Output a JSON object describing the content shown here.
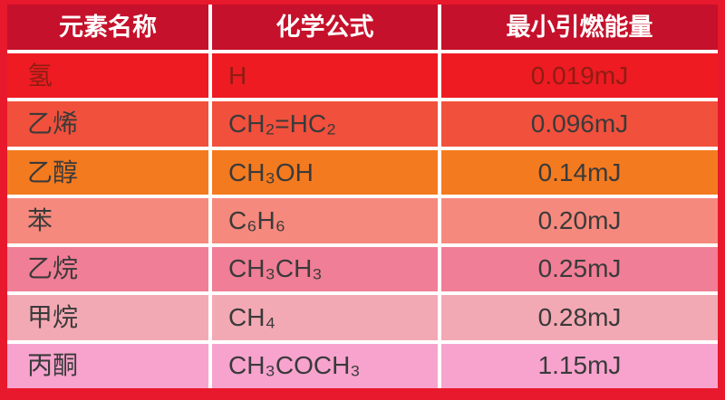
{
  "chart_data": {
    "type": "table",
    "title": "",
    "columns": [
      "元素名称",
      "化学公式",
      "最小引燃能量"
    ],
    "rows": [
      [
        "氢",
        "H",
        "0.019mJ"
      ],
      [
        "乙烯",
        "CH₂=HC₂",
        "0.096mJ"
      ],
      [
        "乙醇",
        "CH₃OH",
        "0.14mJ"
      ],
      [
        "苯",
        "C₆H₆",
        "0.20mJ"
      ],
      [
        "乙烷",
        "CH₃CH₃",
        "0.25mJ"
      ],
      [
        "甲烷",
        "CH₄",
        "0.28mJ"
      ],
      [
        "丙酮",
        "CH₃COCH₃",
        "1.15mJ"
      ]
    ]
  },
  "style": {
    "border_color": "#e8192c",
    "grid_color": "#ffffff",
    "header_bg": "#c5112b",
    "header_fg": "#ffffff",
    "row_colors": [
      {
        "bg": "#ee1b23",
        "fg": "#8f1d12"
      },
      {
        "bg": "#f1503c",
        "fg": "#3a3a3a"
      },
      {
        "bg": "#f47a1f",
        "fg": "#3a3a3a"
      },
      {
        "bg": "#f6897d",
        "fg": "#3a3a3a"
      },
      {
        "bg": "#f07e96",
        "fg": "#3a3a3a"
      },
      {
        "bg": "#f3a9b4",
        "fg": "#3a3a3a"
      },
      {
        "bg": "#f7a3cd",
        "fg": "#3a3a3a"
      }
    ]
  }
}
